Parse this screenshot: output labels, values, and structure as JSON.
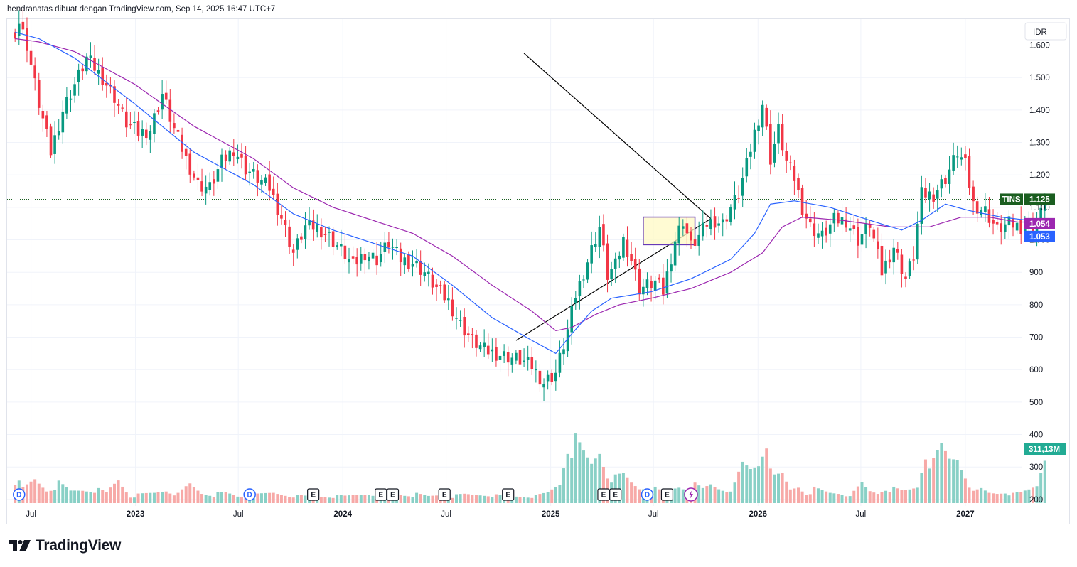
{
  "header": {
    "caption": "hendranatas dibuat dengan TradingView.com, Sep 14, 2025 16:47 UTC+7"
  },
  "brand": {
    "name": "TradingView"
  },
  "colors": {
    "up": "#089981",
    "down": "#f23645",
    "ema_fast": "#2962ff",
    "ema_slow": "#9c27b0",
    "vol_up": "#89d0c6",
    "vol_down": "#f7a9a7",
    "last_price_bg": "#1b5e20",
    "trend_lines": "#000000",
    "box_border": "#673ab7",
    "box_fill": "#fff9c4"
  },
  "chart_data": {
    "type": "candlestick",
    "symbol": "TINS",
    "currency": "IDR",
    "interval": "weekly",
    "last_price": "1.125",
    "ma_values": {
      "purple": "1.054",
      "blue": "1.053"
    },
    "volume_last": "311,13M",
    "y_ticks": [
      "1.600",
      "1.500",
      "1.400",
      "1.300",
      "1.200",
      "1.100",
      "1.000",
      "900",
      "800",
      "700",
      "600",
      "500",
      "400",
      "300",
      "200"
    ],
    "x_ticks": [
      {
        "label": "Jul",
        "date": "2022-07-01",
        "bold": false
      },
      {
        "label": "2023",
        "date": "2023-01-01",
        "bold": true
      },
      {
        "label": "Jul",
        "date": "2023-07-01",
        "bold": false
      },
      {
        "label": "2024",
        "date": "2024-01-01",
        "bold": true
      },
      {
        "label": "Jul",
        "date": "2024-07-01",
        "bold": false
      },
      {
        "label": "2025",
        "date": "2025-01-01",
        "bold": true
      },
      {
        "label": "Jul",
        "date": "2025-07-01",
        "bold": false
      },
      {
        "label": "2026",
        "date": "2026-01-01",
        "bold": true
      },
      {
        "label": "Jul",
        "date": "2026-07-01",
        "bold": false
      },
      {
        "label": "2027",
        "date": "2027-01-01",
        "bold": true
      }
    ],
    "x_range": [
      "2022-05-20",
      "2027-04-10"
    ],
    "y_range": [
      180,
      1680
    ],
    "first_week": "2022-06-03",
    "anchors": [
      [
        0,
        1620
      ],
      [
        1,
        1670
      ],
      [
        3,
        1600
      ],
      [
        6,
        1420
      ],
      [
        9,
        1270
      ],
      [
        12,
        1400
      ],
      [
        15,
        1480
      ],
      [
        18,
        1560
      ],
      [
        22,
        1500
      ],
      [
        25,
        1440
      ],
      [
        28,
        1360
      ],
      [
        31,
        1330
      ],
      [
        34,
        1340
      ],
      [
        37,
        1450
      ],
      [
        40,
        1340
      ],
      [
        43,
        1250
      ],
      [
        46,
        1170
      ],
      [
        49,
        1160
      ],
      [
        52,
        1240
      ],
      [
        55,
        1280
      ],
      [
        58,
        1220
      ],
      [
        61,
        1190
      ],
      [
        64,
        1160
      ],
      [
        67,
        1070
      ],
      [
        70,
        960
      ],
      [
        73,
        1040
      ],
      [
        76,
        1040
      ],
      [
        79,
        1010
      ],
      [
        82,
        970
      ],
      [
        85,
        920
      ],
      [
        88,
        960
      ],
      [
        91,
        940
      ],
      [
        94,
        990
      ],
      [
        97,
        940
      ],
      [
        100,
        930
      ],
      [
        103,
        900
      ],
      [
        106,
        850
      ],
      [
        109,
        810
      ],
      [
        112,
        740
      ],
      [
        115,
        690
      ],
      [
        118,
        660
      ],
      [
        121,
        650
      ],
      [
        124,
        640
      ],
      [
        127,
        630
      ],
      [
        130,
        610
      ],
      [
        133,
        560
      ],
      [
        136,
        590
      ],
      [
        139,
        720
      ],
      [
        141,
        830
      ],
      [
        143,
        900
      ],
      [
        145,
        970
      ],
      [
        147,
        1040
      ],
      [
        149,
        890
      ],
      [
        151,
        920
      ],
      [
        153,
        1000
      ],
      [
        155,
        940
      ],
      [
        157,
        850
      ],
      [
        159,
        860
      ],
      [
        161,
        870
      ],
      [
        163,
        840
      ],
      [
        166,
        1000
      ],
      [
        168,
        1060
      ],
      [
        170,
        980
      ],
      [
        172,
        1010
      ],
      [
        174,
        1050
      ],
      [
        176,
        1060
      ],
      [
        178,
        1050
      ],
      [
        180,
        1100
      ],
      [
        182,
        1140
      ],
      [
        184,
        1230
      ],
      [
        186,
        1330
      ],
      [
        188,
        1420
      ],
      [
        190,
        1250
      ],
      [
        192,
        1340
      ],
      [
        194,
        1240
      ],
      [
        196,
        1190
      ],
      [
        198,
        1100
      ],
      [
        200,
        1040
      ],
      [
        203,
        1010
      ],
      [
        206,
        1060
      ],
      [
        209,
        1060
      ],
      [
        212,
        1000
      ],
      [
        215,
        1050
      ],
      [
        218,
        900
      ],
      [
        221,
        980
      ],
      [
        224,
        880
      ],
      [
        226,
        950
      ],
      [
        228,
        1140
      ],
      [
        231,
        1140
      ],
      [
        234,
        1190
      ],
      [
        237,
        1270
      ],
      [
        239,
        1230
      ],
      [
        241,
        1110
      ],
      [
        244,
        1090
      ],
      [
        247,
        1030
      ],
      [
        250,
        1050
      ],
      [
        253,
        1040
      ],
      [
        256,
        1040
      ],
      [
        258,
        1080
      ],
      [
        259,
        1125
      ]
    ],
    "volume_anchors": [
      [
        0,
        70
      ],
      [
        2,
        40
      ],
      [
        5,
        70
      ],
      [
        8,
        40
      ],
      [
        11,
        55
      ],
      [
        14,
        35
      ],
      [
        17,
        40
      ],
      [
        20,
        40
      ],
      [
        23,
        30
      ],
      [
        26,
        70
      ],
      [
        29,
        20
      ],
      [
        32,
        25
      ],
      [
        35,
        30
      ],
      [
        38,
        40
      ],
      [
        41,
        25
      ],
      [
        44,
        55
      ],
      [
        47,
        30
      ],
      [
        50,
        25
      ],
      [
        53,
        30
      ],
      [
        56,
        20
      ],
      [
        59,
        20
      ],
      [
        62,
        25
      ],
      [
        65,
        30
      ],
      [
        68,
        25
      ],
      [
        71,
        20
      ],
      [
        74,
        20
      ],
      [
        77,
        20
      ],
      [
        80,
        20
      ],
      [
        83,
        20
      ],
      [
        86,
        25
      ],
      [
        89,
        30
      ],
      [
        92,
        25
      ],
      [
        95,
        30
      ],
      [
        98,
        25
      ],
      [
        101,
        25
      ],
      [
        104,
        20
      ],
      [
        107,
        25
      ],
      [
        110,
        20
      ],
      [
        113,
        25
      ],
      [
        116,
        25
      ],
      [
        119,
        25
      ],
      [
        122,
        20
      ],
      [
        125,
        20
      ],
      [
        128,
        20
      ],
      [
        131,
        20
      ],
      [
        134,
        30
      ],
      [
        137,
        60
      ],
      [
        139,
        180
      ],
      [
        141,
        170
      ],
      [
        143,
        140
      ],
      [
        145,
        115
      ],
      [
        147,
        160
      ],
      [
        149,
        90
      ],
      [
        151,
        70
      ],
      [
        153,
        80
      ],
      [
        155,
        60
      ],
      [
        157,
        45
      ],
      [
        159,
        50
      ],
      [
        161,
        40
      ],
      [
        163,
        30
      ],
      [
        165,
        40
      ],
      [
        167,
        50
      ],
      [
        169,
        45
      ],
      [
        171,
        50
      ],
      [
        173,
        40
      ],
      [
        175,
        55
      ],
      [
        177,
        45
      ],
      [
        179,
        40
      ],
      [
        181,
        50
      ],
      [
        183,
        110
      ],
      [
        185,
        100
      ],
      [
        187,
        120
      ],
      [
        189,
        200
      ],
      [
        191,
        70
      ],
      [
        193,
        80
      ],
      [
        195,
        40
      ],
      [
        197,
        50
      ],
      [
        199,
        30
      ],
      [
        201,
        40
      ],
      [
        203,
        35
      ],
      [
        205,
        30
      ],
      [
        207,
        30
      ],
      [
        209,
        25
      ],
      [
        211,
        30
      ],
      [
        213,
        55
      ],
      [
        215,
        35
      ],
      [
        217,
        30
      ],
      [
        219,
        45
      ],
      [
        221,
        40
      ],
      [
        223,
        35
      ],
      [
        225,
        40
      ],
      [
        227,
        50
      ],
      [
        229,
        160
      ],
      [
        231,
        110
      ],
      [
        233,
        160
      ],
      [
        235,
        130
      ],
      [
        237,
        140
      ],
      [
        239,
        90
      ],
      [
        241,
        30
      ],
      [
        243,
        40
      ],
      [
        245,
        30
      ],
      [
        247,
        30
      ],
      [
        249,
        35
      ],
      [
        251,
        25
      ],
      [
        253,
        30
      ],
      [
        255,
        40
      ],
      [
        257,
        55
      ],
      [
        259,
        155
      ]
    ],
    "ema_fast_anchors": [
      [
        0,
        1640
      ],
      [
        6,
        1620
      ],
      [
        15,
        1560
      ],
      [
        30,
        1420
      ],
      [
        45,
        1270
      ],
      [
        60,
        1170
      ],
      [
        70,
        1080
      ],
      [
        80,
        1030
      ],
      [
        90,
        990
      ],
      [
        100,
        950
      ],
      [
        110,
        860
      ],
      [
        120,
        760
      ],
      [
        130,
        690
      ],
      [
        136,
        650
      ],
      [
        140,
        710
      ],
      [
        145,
        780
      ],
      [
        150,
        820
      ],
      [
        160,
        840
      ],
      [
        170,
        880
      ],
      [
        180,
        940
      ],
      [
        186,
        1020
      ],
      [
        190,
        1110
      ],
      [
        196,
        1120
      ],
      [
        205,
        1100
      ],
      [
        215,
        1060
      ],
      [
        223,
        1030
      ],
      [
        228,
        1060
      ],
      [
        234,
        1110
      ],
      [
        240,
        1090
      ],
      [
        248,
        1070
      ],
      [
        255,
        1060
      ],
      [
        259,
        1053
      ]
    ],
    "ema_slow_anchors": [
      [
        0,
        1620
      ],
      [
        6,
        1610
      ],
      [
        15,
        1580
      ],
      [
        30,
        1480
      ],
      [
        45,
        1350
      ],
      [
        60,
        1250
      ],
      [
        70,
        1160
      ],
      [
        80,
        1100
      ],
      [
        90,
        1060
      ],
      [
        100,
        1020
      ],
      [
        110,
        950
      ],
      [
        120,
        860
      ],
      [
        130,
        780
      ],
      [
        136,
        720
      ],
      [
        140,
        730
      ],
      [
        146,
        770
      ],
      [
        152,
        800
      ],
      [
        160,
        820
      ],
      [
        170,
        850
      ],
      [
        180,
        900
      ],
      [
        188,
        960
      ],
      [
        193,
        1040
      ],
      [
        198,
        1070
      ],
      [
        208,
        1060
      ],
      [
        220,
        1040
      ],
      [
        230,
        1040
      ],
      [
        238,
        1070
      ],
      [
        245,
        1070
      ],
      [
        252,
        1055
      ],
      [
        259,
        1054
      ]
    ],
    "trendlines": [
      {
        "from": [
          "2024-11-15",
          1575
        ],
        "to": [
          "2025-10-10",
          1065
        ]
      },
      {
        "from": [
          "2024-11-01",
          690
        ],
        "to": [
          "2025-10-10",
          1065
        ]
      }
    ],
    "box": {
      "from": "2025-06-13",
      "to": "2025-09-12",
      "high": 1070,
      "low": 985
    },
    "event_markers": [
      {
        "type": "D",
        "date": "2022-06-10"
      },
      {
        "type": "D",
        "date": "2023-07-21"
      },
      {
        "type": "E",
        "date": "2023-11-10"
      },
      {
        "type": "E",
        "date": "2024-03-08"
      },
      {
        "type": "E",
        "date": "2024-03-29"
      },
      {
        "type": "E",
        "date": "2024-06-28"
      },
      {
        "type": "E",
        "date": "2024-10-18"
      },
      {
        "type": "E",
        "date": "2025-04-04"
      },
      {
        "type": "E",
        "date": "2025-04-25"
      },
      {
        "type": "D",
        "date": "2025-06-20"
      },
      {
        "type": "E",
        "date": "2025-07-25"
      },
      {
        "type": "flash",
        "date": "2025-09-05"
      }
    ]
  }
}
